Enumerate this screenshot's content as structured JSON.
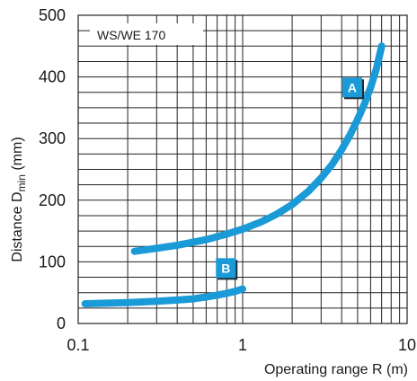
{
  "chart_data": {
    "type": "line",
    "title": "WS/WE 170",
    "xlabel": "Operating range R (m)",
    "ylabel": "Distance Dmin (mm)",
    "ylabel_main": "Distance D",
    "ylabel_sub": "min",
    "ylabel_unit": " (mm)",
    "x_scale": "log",
    "xlim": [
      0.1,
      10
    ],
    "ylim": [
      0,
      500
    ],
    "x_ticks": [
      "0.1",
      "1",
      "10"
    ],
    "y_ticks": [
      "0",
      "100",
      "200",
      "300",
      "400",
      "500"
    ],
    "grid": true,
    "series": [
      {
        "name": "A",
        "x": [
          0.22,
          0.3,
          0.4,
          0.6,
          0.8,
          1.0,
          1.3,
          1.6,
          2.0,
          2.5,
          3.0,
          3.5,
          4.0,
          4.5,
          5.0,
          5.5,
          6.0,
          6.5,
          7.0
        ],
        "y": [
          117,
          122,
          127,
          136,
          145,
          153,
          165,
          177,
          193,
          214,
          236,
          258,
          282,
          306,
          331,
          356,
          383,
          413,
          450
        ]
      },
      {
        "name": "B",
        "x": [
          0.11,
          0.15,
          0.2,
          0.3,
          0.4,
          0.5,
          0.6,
          0.7,
          0.8,
          0.9,
          1.0
        ],
        "y": [
          32,
          33,
          34,
          36,
          38,
          40,
          43,
          46,
          49,
          52,
          56
        ]
      }
    ],
    "series_color": "#1a9ad6"
  }
}
